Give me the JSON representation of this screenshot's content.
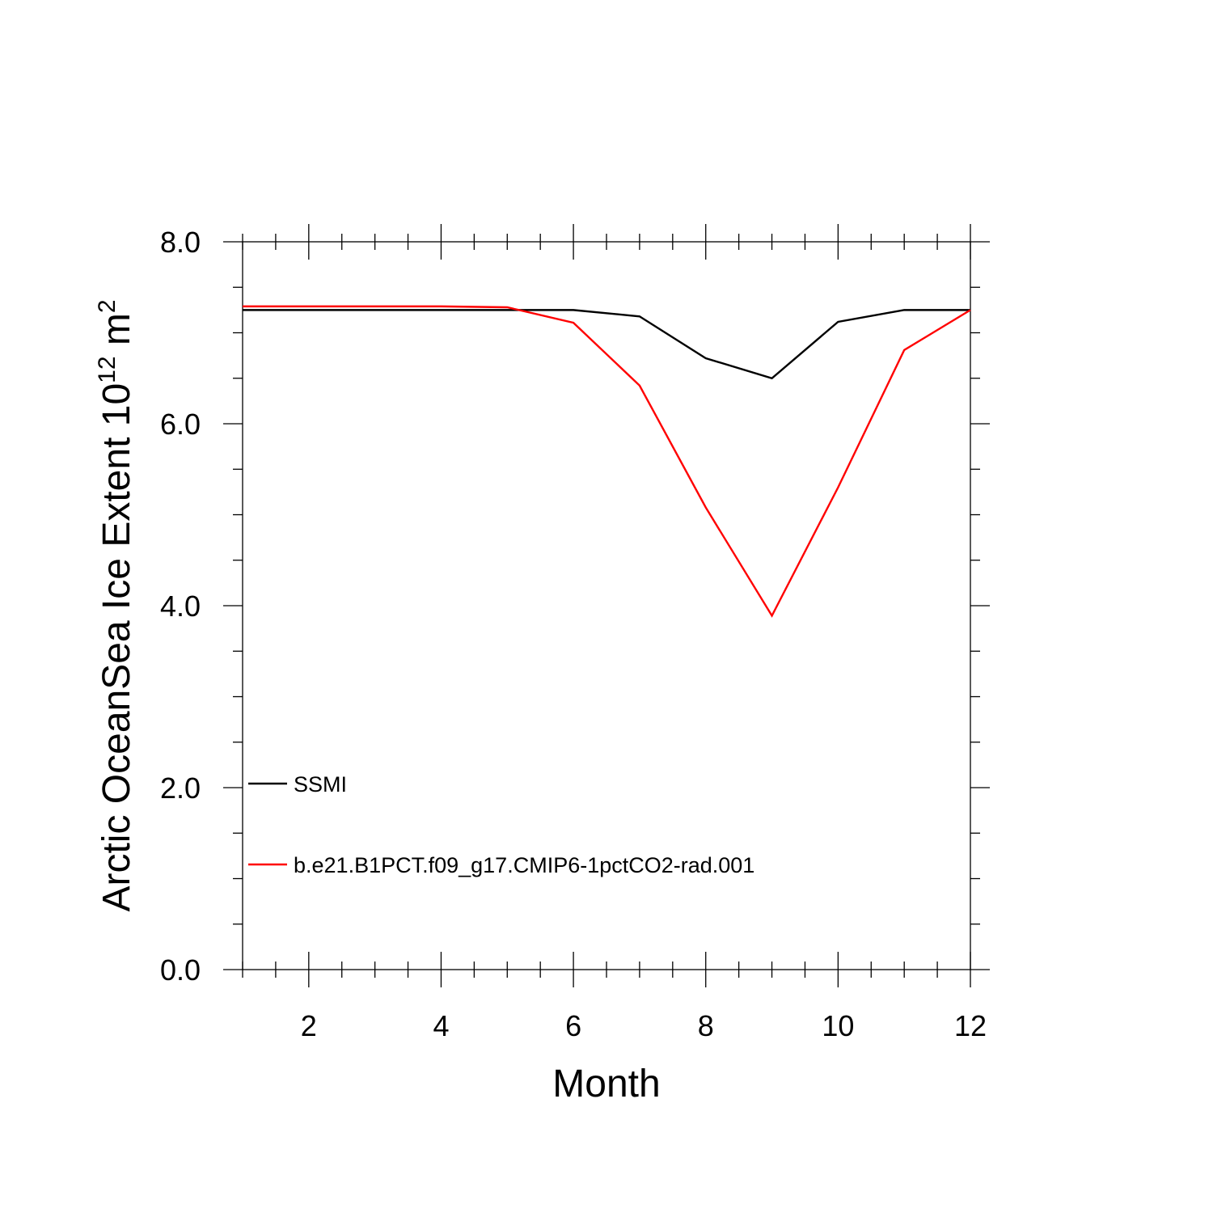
{
  "chart_data": {
    "type": "line",
    "title": "",
    "xlabel": "Month",
    "ylabel": {
      "text": "Arctic OceanSea Ice Extent 10",
      "superscript_1": "12",
      "unit": " m",
      "superscript_2": "2"
    },
    "xlim": [
      1,
      12
    ],
    "ylim": [
      0,
      8
    ],
    "x_ticks": [
      2,
      4,
      6,
      8,
      10,
      12
    ],
    "x_tick_labels": [
      "2",
      "4",
      "6",
      "8",
      "10",
      "12"
    ],
    "y_ticks": [
      0,
      2,
      4,
      6,
      8
    ],
    "y_tick_labels": [
      "0.0",
      "2.0",
      "4.0",
      "6.0",
      "8.0"
    ],
    "grid": false,
    "legend_position": "bottom-left",
    "x": [
      1,
      2,
      3,
      4,
      5,
      6,
      7,
      8,
      9,
      10,
      11,
      12
    ],
    "series": [
      {
        "name": "SSMI",
        "color": "#000000",
        "values": [
          7.25,
          7.25,
          7.25,
          7.25,
          7.25,
          7.25,
          7.18,
          6.72,
          6.5,
          7.12,
          7.25,
          7.25
        ]
      },
      {
        "name": "b.e21.B1PCT.f09_g17.CMIP6-1pctCO2-rad.001",
        "color": "#ff0000",
        "values": [
          7.29,
          7.29,
          7.29,
          7.29,
          7.28,
          7.11,
          6.42,
          5.08,
          3.89,
          5.3,
          6.81,
          7.25
        ]
      }
    ]
  }
}
